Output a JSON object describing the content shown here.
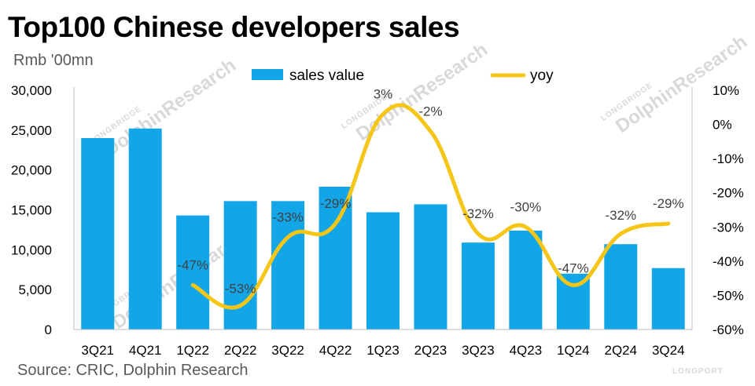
{
  "title": "Top100 Chinese developers sales",
  "unit": "Rmb '00mn",
  "source": "Source: CRIC, Dolphin Research",
  "watermark": {
    "brand": "DolphinResearch",
    "brand_small": "LONGBRIDGE",
    "corner": "LONGPORT"
  },
  "colors": {
    "bar": "#12a6e8",
    "line": "#f5c518",
    "axis": "#bfbfbf"
  },
  "chart_data": {
    "type": "bar",
    "title": "Top100 Chinese developers sales",
    "categories": [
      "3Q21",
      "4Q21",
      "1Q22",
      "2Q22",
      "3Q22",
      "4Q22",
      "1Q23",
      "2Q23",
      "3Q23",
      "4Q23",
      "1Q24",
      "2Q24",
      "3Q24"
    ],
    "series": [
      {
        "name": "sales value",
        "type": "bar",
        "axis": "left",
        "values": [
          24000,
          25200,
          14300,
          16100,
          16100,
          17900,
          14700,
          15700,
          10900,
          12400,
          7000,
          10700,
          7700
        ]
      },
      {
        "name": "yoy",
        "type": "line",
        "axis": "right",
        "values": [
          null,
          null,
          -47,
          -53,
          -33,
          -29,
          3,
          -2,
          -32,
          -30,
          -47,
          -32,
          -29
        ],
        "labels": [
          "",
          "",
          "-47%",
          "-53%",
          "-33%",
          "-29%",
          "3%",
          "-2%",
          "-32%",
          "-30%",
          "-47%",
          "-32%",
          "-29%"
        ]
      }
    ],
    "ylabel": "Rmb '00mn",
    "ylim": [
      0,
      30000
    ],
    "yticks": [
      "0",
      "5,000",
      "10,000",
      "15,000",
      "20,000",
      "25,000",
      "30,000"
    ],
    "y2lim": [
      -60,
      10
    ],
    "y2ticks": [
      "-60%",
      "-50%",
      "-40%",
      "-30%",
      "-20%",
      "-10%",
      "0%",
      "10%"
    ],
    "legend": "top-center",
    "grid": false
  }
}
